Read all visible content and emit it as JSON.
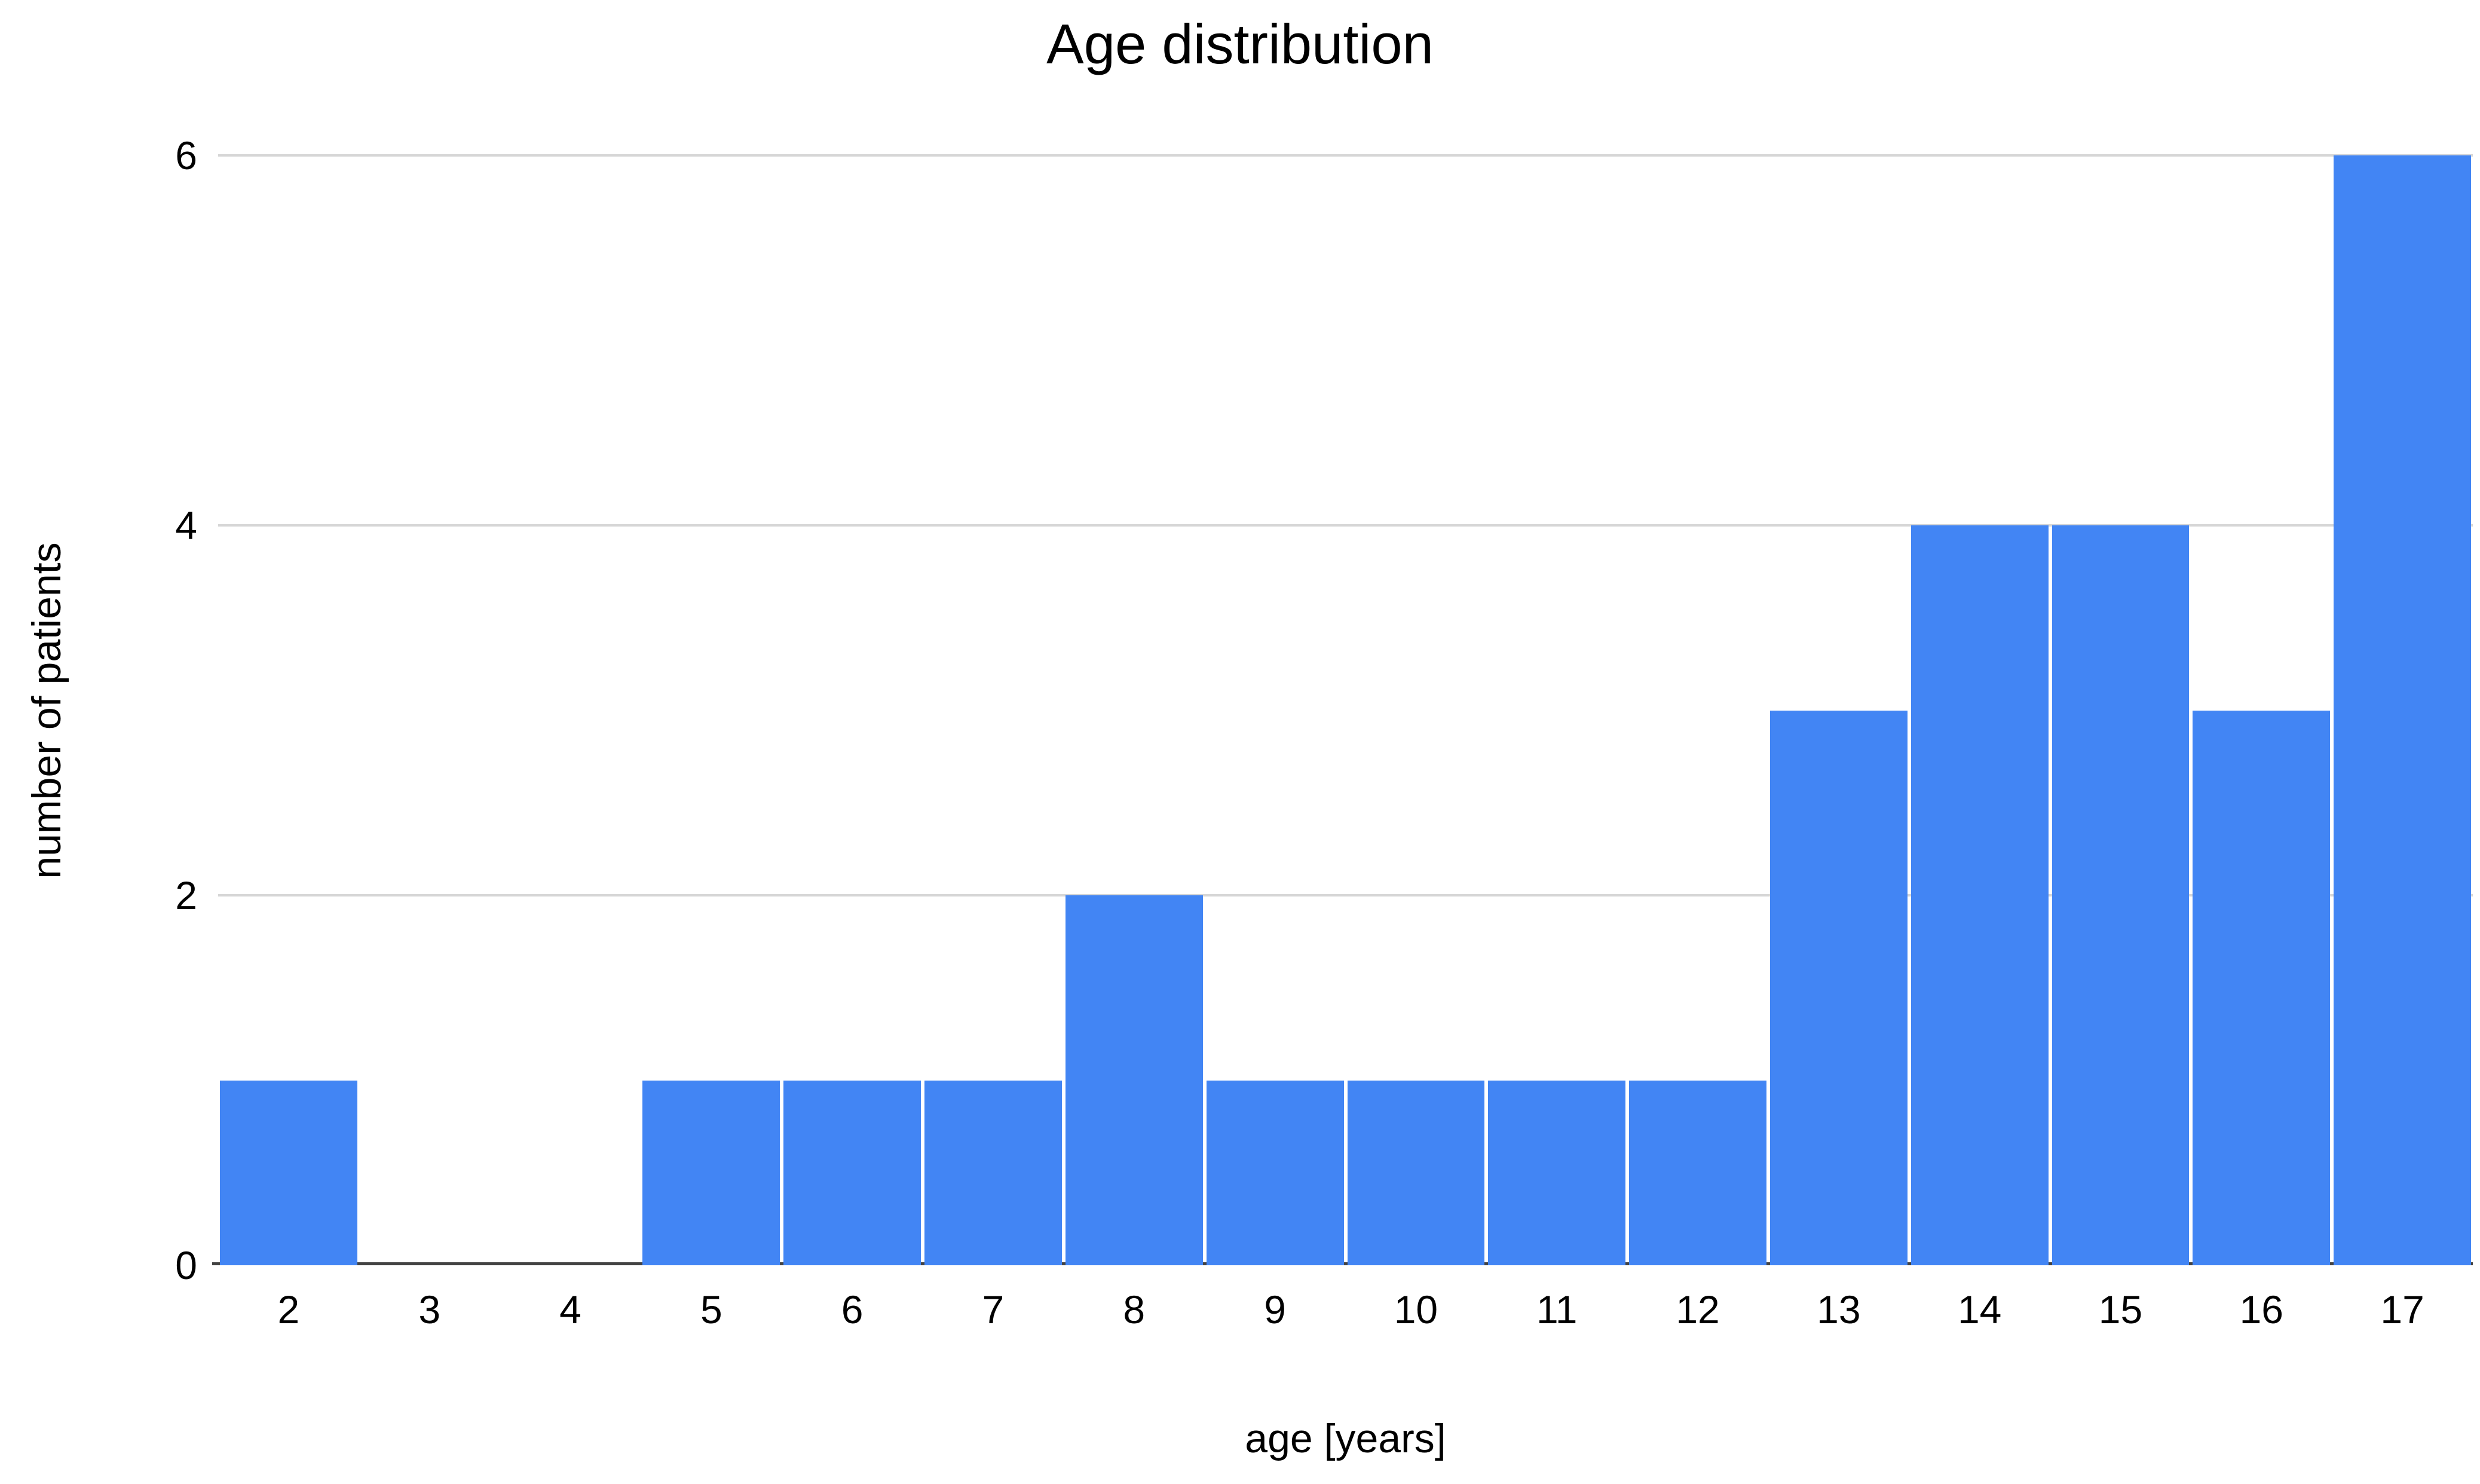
{
  "chart_data": {
    "type": "bar",
    "title": "Age distribution",
    "xlabel": "age [years]",
    "ylabel": "number of patients",
    "categories": [
      2,
      3,
      4,
      5,
      6,
      7,
      8,
      9,
      10,
      11,
      12,
      13,
      14,
      15,
      16,
      17
    ],
    "values": [
      1,
      0,
      0,
      1,
      1,
      1,
      2,
      1,
      1,
      1,
      1,
      3,
      4,
      4,
      3,
      6
    ],
    "ylim": [
      0,
      6
    ],
    "yticks": [
      0,
      2,
      4,
      6
    ],
    "grid": "horizontal",
    "legend_position": "none",
    "colors": {
      "bar": "#4285f4",
      "gridline": "#d6d6d6",
      "axis_line": "#424242",
      "text": "#000000",
      "background": "#ffffff"
    }
  }
}
